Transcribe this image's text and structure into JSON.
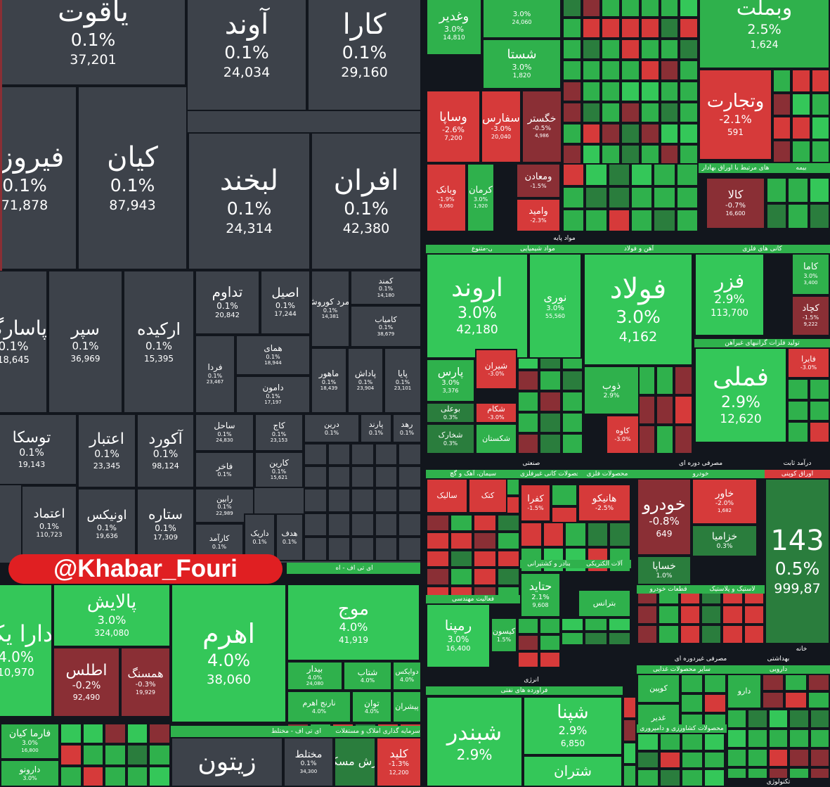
{
  "colors": {
    "neutral": "#3d424a",
    "green": "#2fb14c",
    "green_bright": "#34c759",
    "green_dark": "#2a7d3d",
    "red": "#d63a3a",
    "red_dark": "#8a2f35",
    "sector_bg": "#12161d"
  },
  "watermark": "@Khabar_Fouri",
  "sector_headers": [
    {
      "id": "h-mavad",
      "text": "مواد پایه"
    },
    {
      "id": "h-shimiyai",
      "text": "محصولات شیمیایی-متنوع"
    },
    {
      "id": "h-ahan",
      "text": "آهن و فولاد"
    },
    {
      "id": "h-kani",
      "text": "کانی های فلزی"
    },
    {
      "id": "h-felezat",
      "text": "تولید فلزات گرانبهای غیرآهن"
    },
    {
      "id": "h-senati",
      "text": "صنعتی"
    },
    {
      "id": "h-dorei",
      "text": "مصرفی دوره ای"
    },
    {
      "id": "h-sabet",
      "text": "درآمد ثابت"
    },
    {
      "id": "h-siman",
      "text": "سیمان، آهک و گچ"
    },
    {
      "id": "h-kani-gheyr",
      "text": "محصولات کانی غیرفلزی"
    },
    {
      "id": "h-felezi",
      "text": "محصولات فلزی"
    },
    {
      "id": "h-khodro",
      "text": "خودرو"
    },
    {
      "id": "h-oragh",
      "text": "اوراق کوپنی"
    },
    {
      "id": "h-bandar",
      "text": "بنادر و کشتیرانی"
    },
    {
      "id": "h-elec",
      "text": "آلات الکتریکی"
    },
    {
      "id": "h-ghataat",
      "text": "قطعات خودرو"
    },
    {
      "id": "h-lastik",
      "text": "لاستیک و پلاستیک"
    },
    {
      "id": "h-fa-mohandesi",
      "text": "فعالیت مهندسی"
    },
    {
      "id": "h-enerji",
      "text": "انرژی"
    },
    {
      "id": "h-faravarde",
      "text": "فراورده های نفتی"
    },
    {
      "id": "h-gheyr-dorei",
      "text": "مصرفی غیردوره ای"
    },
    {
      "id": "h-behdashti",
      "text": "بهداشتی"
    },
    {
      "id": "h-daroei",
      "text": "دارویی"
    },
    {
      "id": "h-sayer",
      "text": "سایر محصولات غذایی"
    },
    {
      "id": "h-keshavarzi",
      "text": "محصولات کشاورزی و دامپروری"
    },
    {
      "id": "h-technology",
      "text": "تکنولوژی"
    },
    {
      "id": "h-itf",
      "text": "ای تی اف - مختلط"
    },
    {
      "id": "h-etf2",
      "text": "ای تی اف - اه"
    },
    {
      "id": "h-sarmaye",
      "text": "سرمایه گذاری املاک و مستغلات"
    },
    {
      "id": "h-bime",
      "text": "بیمه"
    },
    {
      "id": "h-oragh-bahadar",
      "text": "های مرتبط با اوراق بهادار"
    },
    {
      "id": "h-khane",
      "text": "خانه"
    },
    {
      "id": "h-diversified",
      "text": "مواد شیمیایی"
    }
  ],
  "tiles": [
    {
      "id": "yaghout",
      "name": "یاقوت",
      "pct": "0.1%",
      "val": "37,201",
      "color": "neutral",
      "fs": 40
    },
    {
      "id": "avand",
      "name": "آوند",
      "pct": "0.1%",
      "val": "24,034",
      "color": "neutral",
      "fs": 40
    },
    {
      "id": "kara",
      "name": "کارا",
      "pct": "0.1%",
      "val": "29,160",
      "color": "neutral",
      "fs": 40
    },
    {
      "id": "firouzeh",
      "name": "فیروزه",
      "pct": "0.1%",
      "val": "71,878",
      "color": "neutral",
      "fs": 40
    },
    {
      "id": "kian",
      "name": "کیان",
      "pct": "0.1%",
      "val": "87,943",
      "color": "neutral",
      "fs": 40
    },
    {
      "id": "labkhand",
      "name": "لبخند",
      "pct": "0.1%",
      "val": "24,314",
      "color": "neutral",
      "fs": 40
    },
    {
      "id": "afran",
      "name": "افران",
      "pct": "0.1%",
      "val": "42,380",
      "color": "neutral",
      "fs": 40
    },
    {
      "id": "pasargad",
      "name": "پاسارگاد",
      "pct": "0.1%",
      "val": "18,645",
      "color": "neutral",
      "fs": 28
    },
    {
      "id": "separ",
      "name": "سپر",
      "pct": "0.1%",
      "val": "36,969",
      "color": "neutral",
      "fs": 24
    },
    {
      "id": "arkideh",
      "name": "ارکیده",
      "pct": "0.1%",
      "val": "15,395",
      "color": "neutral",
      "fs": 24
    },
    {
      "id": "tadavom",
      "name": "تداوم",
      "pct": "0.1%",
      "val": "20,842",
      "color": "neutral",
      "fs": 20
    },
    {
      "id": "asil",
      "name": "اصیل",
      "pct": "0.1%",
      "val": "17,244",
      "color": "neutral",
      "fs": 18
    },
    {
      "id": "zomorod",
      "name": "زمرد کوروش",
      "pct": "0.1%",
      "val": "14,381",
      "color": "neutral",
      "fs": 12
    },
    {
      "id": "kamand",
      "name": "کمند",
      "pct": "0.1%",
      "val": "14,180",
      "color": "neutral",
      "fs": 11
    },
    {
      "id": "kamyab",
      "name": "کامیاب",
      "pct": "0.1%",
      "val": "38,679",
      "color": "neutral",
      "fs": 11
    },
    {
      "id": "hamay",
      "name": "همای",
      "pct": "0.1%",
      "val": "18,944",
      "color": "neutral",
      "fs": 12
    },
    {
      "id": "farda",
      "name": "فردا",
      "pct": "0.1%",
      "val": "23,467",
      "color": "neutral",
      "fs": 12
    },
    {
      "id": "damoon",
      "name": "دامون",
      "pct": "0.1%",
      "val": "17,197",
      "color": "neutral",
      "fs": 12
    },
    {
      "id": "mahoor",
      "name": "ماهور",
      "pct": "0.1%",
      "val": "18,439",
      "color": "neutral",
      "fs": 12
    },
    {
      "id": "padash",
      "name": "پاداش",
      "pct": "0.1%",
      "val": "23,904",
      "color": "neutral",
      "fs": 12
    },
    {
      "id": "paya",
      "name": "پایا",
      "pct": "0.1%",
      "val": "23,101",
      "color": "neutral",
      "fs": 12
    },
    {
      "id": "touska",
      "name": "توسکا",
      "pct": "0.1%",
      "val": "19,143",
      "color": "neutral",
      "fs": 22
    },
    {
      "id": "etebar",
      "name": "اعتبار",
      "pct": "0.1%",
      "val": "23,345",
      "color": "neutral",
      "fs": 22
    },
    {
      "id": "akoord",
      "name": "آکورد",
      "pct": "0.1%",
      "val": "98,124",
      "color": "neutral",
      "fs": 22
    },
    {
      "id": "sahel",
      "name": "ساحل",
      "pct": "0.1%",
      "val": "24,830",
      "color": "neutral",
      "fs": 12
    },
    {
      "id": "kaj",
      "name": "کاج",
      "pct": "0.1%",
      "val": "23,153",
      "color": "neutral",
      "fs": 12
    },
    {
      "id": "dorin",
      "name": "درین",
      "pct": "0.1%",
      "val": "",
      "color": "neutral",
      "fs": 11
    },
    {
      "id": "parand",
      "name": "پارند",
      "pct": "0.1%",
      "val": "",
      "color": "neutral",
      "fs": 11
    },
    {
      "id": "rahd",
      "name": "رهد",
      "pct": "0.1%",
      "val": "",
      "color": "neutral",
      "fs": 11
    },
    {
      "id": "fakher",
      "name": "فاخر",
      "pct": "0.1%",
      "val": "",
      "color": "neutral",
      "fs": 12
    },
    {
      "id": "karin",
      "name": "کارین",
      "pct": "0.1%",
      "val": "15,621",
      "color": "neutral",
      "fs": 12
    },
    {
      "id": "etemad",
      "name": "اعتماد",
      "pct": "0.1%",
      "val": "110,723",
      "color": "neutral",
      "fs": 18
    },
    {
      "id": "onix",
      "name": "اونیکس",
      "pct": "0.1%",
      "val": "19,636",
      "color": "neutral",
      "fs": 18
    },
    {
      "id": "setareh",
      "name": "ستاره",
      "pct": "0.1%",
      "val": "17,309",
      "color": "neutral",
      "fs": 20
    },
    {
      "id": "rabin",
      "name": "رابین",
      "pct": "0.1%",
      "val": "22,989",
      "color": "neutral",
      "fs": 11
    },
    {
      "id": "karamad",
      "name": "کارآمد",
      "pct": "0.1%",
      "val": "",
      "color": "neutral",
      "fs": 11
    },
    {
      "id": "darik",
      "name": "داریک",
      "pct": "0.1%",
      "val": "",
      "color": "neutral",
      "fs": 11
    },
    {
      "id": "hadaf",
      "name": "هدف",
      "pct": "0.1%",
      "val": "",
      "color": "neutral",
      "fs": 11
    },
    {
      "id": "vaghadir",
      "name": "وغدیر",
      "pct": "3.0%",
      "val": "14,810",
      "color": "green",
      "fs": 18
    },
    {
      "id": "top1",
      "name": "",
      "pct": "3.0%",
      "val": "24,060",
      "color": "green",
      "fs": 16
    },
    {
      "id": "shasta",
      "name": "شستا",
      "pct": "3.0%",
      "val": "1,820",
      "color": "green",
      "fs": 18
    },
    {
      "id": "vabemellat",
      "name": "وبملت",
      "pct": "2.5%",
      "val": "1,624",
      "color": "green",
      "fs": 30
    },
    {
      "id": "vatejarat",
      "name": "وتجارت",
      "pct": "-2.1%",
      "val": "591",
      "color": "red",
      "fs": 26
    },
    {
      "id": "vasapa",
      "name": "وساپا",
      "pct": "-2.6%",
      "val": "7,200",
      "color": "red",
      "fs": 18
    },
    {
      "id": "sefares",
      "name": "سفارس",
      "pct": "-3.0%",
      "val": "20,040",
      "color": "red",
      "fs": 16
    },
    {
      "id": "khegostar",
      "name": "خگستر",
      "pct": "-0.5%",
      "val": "4,986",
      "color": "red_dark",
      "fs": 14
    },
    {
      "id": "vabank",
      "name": "وبانک",
      "pct": "-1.9%",
      "val": "9,060",
      "color": "red",
      "fs": 13
    },
    {
      "id": "kerman",
      "name": "کرمان",
      "pct": "3.0%",
      "val": "1,920",
      "color": "green",
      "fs": 13
    },
    {
      "id": "vamaaden",
      "name": "ومعادن",
      "pct": "-1.5%",
      "val": "",
      "color": "red_dark",
      "fs": 13
    },
    {
      "id": "vamid",
      "name": "وامید",
      "pct": "-2.3%",
      "val": "",
      "color": "red",
      "fs": 13
    },
    {
      "id": "kala",
      "name": "کالا",
      "pct": "-0.7%",
      "val": "16,600",
      "color": "red_dark",
      "fs": 16
    },
    {
      "id": "arvand",
      "name": "اروند",
      "pct": "3.0%",
      "val": "42,180",
      "color": "green_bright",
      "fs": 36
    },
    {
      "id": "noori",
      "name": "نوری",
      "pct": "3.0%",
      "val": "55,560",
      "color": "green_bright",
      "fs": 16
    },
    {
      "id": "foolad",
      "name": "فولاد",
      "pct": "3.0%",
      "val": "4,162",
      "color": "green_bright",
      "fs": 40
    },
    {
      "id": "fazar",
      "name": "فزر",
      "pct": "2.9%",
      "val": "113,700",
      "color": "green_bright",
      "fs": 28
    },
    {
      "id": "kama",
      "name": "کاما",
      "pct": "3.0%",
      "val": "3,400",
      "color": "green",
      "fs": 13
    },
    {
      "id": "kachad",
      "name": "کچاد",
      "pct": "-1.5%",
      "val": "9,222",
      "color": "red_dark",
      "fs": 13
    },
    {
      "id": "famli",
      "name": "فملی",
      "pct": "2.9%",
      "val": "12,620",
      "color": "green_bright",
      "fs": 36
    },
    {
      "id": "fabira",
      "name": "فایرا",
      "pct": "-3.0%",
      "val": "",
      "color": "red",
      "fs": 11
    },
    {
      "id": "pars",
      "name": "پارس",
      "pct": "3.0%",
      "val": "3,376",
      "color": "green",
      "fs": 16
    },
    {
      "id": "shiran",
      "name": "شیران",
      "pct": "-3.0%",
      "val": "",
      "color": "red",
      "fs": 12
    },
    {
      "id": "zob",
      "name": "ذوب",
      "pct": "2.9%",
      "val": "",
      "color": "green",
      "fs": 14
    },
    {
      "id": "bouali",
      "name": "بوعلی",
      "pct": "0.3%",
      "val": "",
      "color": "green_dark",
      "fs": 11
    },
    {
      "id": "shekam",
      "name": "شکام",
      "pct": "-3.0%",
      "val": "",
      "color": "red",
      "fs": 11
    },
    {
      "id": "shekhark",
      "name": "شخارک",
      "pct": "0.3%",
      "val": "",
      "color": "green_dark",
      "fs": 11
    },
    {
      "id": "shekastan",
      "name": "شکستان",
      "pct": "",
      "val": "",
      "color": "green",
      "fs": 11
    },
    {
      "id": "kaveh",
      "name": "کاوه",
      "pct": "-3.0%",
      "val": "",
      "color": "red",
      "fs": 11
    },
    {
      "id": "khodro",
      "name": "خودرو",
      "pct": "-0.8%",
      "val": "649",
      "color": "red_dark",
      "fs": 24
    },
    {
      "id": "khavar",
      "name": "خاور",
      "pct": "-2.0%",
      "val": "1,682",
      "color": "red",
      "fs": 14
    },
    {
      "id": "khazamia",
      "name": "خزامیا",
      "pct": "0.3%",
      "val": "",
      "color": "green_dark",
      "fs": 14
    },
    {
      "id": "khasapa",
      "name": "خساپا",
      "pct": "1.0%",
      "val": "",
      "color": "green_dark",
      "fs": 14
    },
    {
      "id": "sabet143",
      "name": "143",
      "pct": "0.5%",
      "val": "999,87",
      "color": "green_dark",
      "fs": 40
    },
    {
      "id": "kefra",
      "name": "کفرا",
      "pct": "-1.5%",
      "val": "",
      "color": "red",
      "fs": 13
    },
    {
      "id": "hanico",
      "name": "هانیکو",
      "pct": "-2.5%",
      "val": "",
      "color": "red",
      "fs": 14
    },
    {
      "id": "hetaid",
      "name": "حتاید",
      "pct": "2.1%",
      "val": "9,608",
      "color": "green",
      "fs": 16
    },
    {
      "id": "bataranes",
      "name": "بترانس",
      "pct": "",
      "val": "",
      "color": "green",
      "fs": 11
    },
    {
      "id": "rampna",
      "name": "رمپنا",
      "pct": "3.0%",
      "val": "16,400",
      "color": "green_bright",
      "fs": 20
    },
    {
      "id": "kisun",
      "name": "کیسون",
      "pct": "1.5%",
      "val": "",
      "color": "green",
      "fs": 11
    },
    {
      "id": "shebandar",
      "name": "شبندر",
      "pct": "2.9%",
      "val": "",
      "color": "green_bright",
      "fs": 32
    },
    {
      "id": "shapna",
      "name": "شپنا",
      "pct": "2.9%",
      "val": "6,850",
      "color": "green_bright",
      "fs": 26
    },
    {
      "id": "shetran",
      "name": "شتران",
      "pct": "",
      "val": "",
      "color": "green_bright",
      "fs": 20
    },
    {
      "id": "daraykom",
      "name": "دارا یکم",
      "pct": "4.0%",
      "val": "10,970",
      "color": "green_bright",
      "fs": 32
    },
    {
      "id": "palayesh",
      "name": "پالایش",
      "pct": "3.0%",
      "val": "324,080",
      "color": "green_bright",
      "fs": 26
    },
    {
      "id": "atlas",
      "name": "اطلس",
      "pct": "-0.2%",
      "val": "92,490",
      "color": "red_dark",
      "fs": 22
    },
    {
      "id": "hamsang",
      "name": "همسنگ",
      "pct": "-0.3%",
      "val": "19,929",
      "color": "red_dark",
      "fs": 16
    },
    {
      "id": "ahrom",
      "name": "اهرم",
      "pct": "4.0%",
      "val": "38,060",
      "color": "green_bright",
      "fs": 38
    },
    {
      "id": "mowj",
      "name": "موج",
      "pct": "4.0%",
      "val": "41,919",
      "color": "green_bright",
      "fs": 26
    },
    {
      "id": "bidar",
      "name": "بیدار",
      "pct": "4.0%",
      "val": "24,080",
      "color": "green",
      "fs": 12
    },
    {
      "id": "shetab",
      "name": "شتاب",
      "pct": "4.0%",
      "val": "",
      "color": "green",
      "fs": 12
    },
    {
      "id": "dovaik",
      "name": "دوایکس",
      "pct": "4.0%",
      "val": "",
      "color": "green",
      "fs": 10
    },
    {
      "id": "navtarikh",
      "name": "نارنج اهرم",
      "pct": "4.0%",
      "val": "",
      "color": "green",
      "fs": 11
    },
    {
      "id": "tavan",
      "name": "توان",
      "pct": "4.0%",
      "val": "",
      "color": "green",
      "fs": 12
    },
    {
      "id": "pishran",
      "name": "پیشران",
      "pct": "",
      "val": "",
      "color": "green",
      "fs": 11
    },
    {
      "id": "farmakian",
      "name": "فارما کیان",
      "pct": "3.0%",
      "val": "16,800",
      "color": "green",
      "fs": 14
    },
    {
      "id": "daroo",
      "name": "دارونو",
      "pct": "3.0%",
      "val": "",
      "color": "green",
      "fs": 12
    },
    {
      "id": "zeytoon",
      "name": "زیتون",
      "pct": "",
      "val": "",
      "color": "neutral",
      "fs": 36
    },
    {
      "id": "mokhtalet",
      "name": "مختلط",
      "pct": "0.1%",
      "val": "34,300",
      "color": "neutral",
      "fs": 14
    },
    {
      "id": "arzesh",
      "name": "ارزش مسکن",
      "pct": "",
      "val": "",
      "color": "green_dark",
      "fs": 16
    },
    {
      "id": "kelid",
      "name": "کلید",
      "pct": "-1.3%",
      "val": "12,200",
      "color": "red",
      "fs": 16
    },
    {
      "id": "koopin",
      "name": "کوپین",
      "pct": "",
      "val": "",
      "color": "green",
      "fs": 11
    },
    {
      "id": "daroopakhsh",
      "name": "دارو",
      "pct": "",
      "val": "",
      "color": "green",
      "fs": 11
    },
    {
      "id": "ghaheb",
      "name": "غدیر",
      "pct": "",
      "val": "",
      "color": "green",
      "fs": 11
    },
    {
      "id": "sabbeh",
      "name": "سالیک",
      "pct": "",
      "val": "",
      "color": "red",
      "fs": 11
    },
    {
      "id": "ketak",
      "name": "کتک",
      "pct": "",
      "val": "",
      "color": "red",
      "fs": 11
    }
  ],
  "small_tile_count": 0
}
